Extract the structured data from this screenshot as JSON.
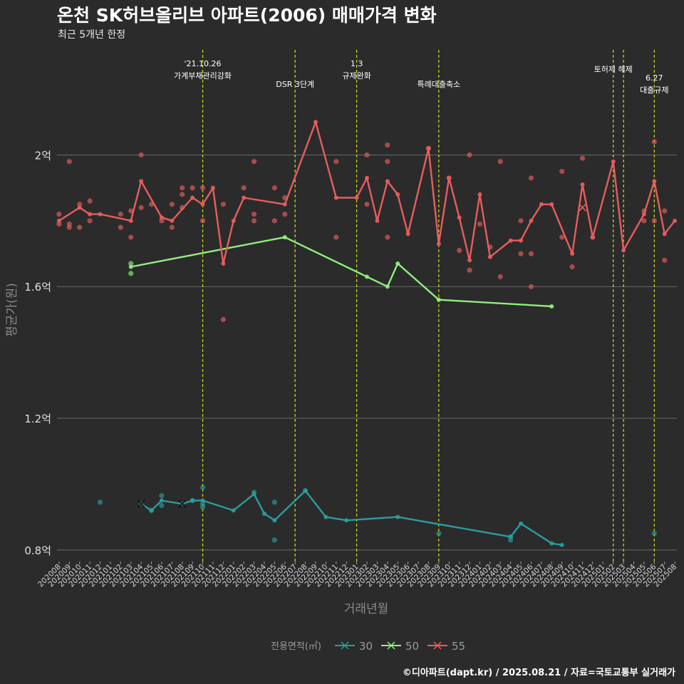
{
  "title": "온천 SK허브올리브 아파트(2006) 매매가격 변화",
  "subtitle": "최근 5개년 한정",
  "caption": "©디아파트(dapt.kr) / 2025.08.21 / 자료=국토교통부 실거래가",
  "chart_data": {
    "type": "line",
    "xlabel": "거래년월",
    "ylabel": "평균가(원)",
    "x": [
      "202008",
      "202009",
      "202010",
      "202011",
      "202012",
      "202101",
      "202102",
      "202103",
      "202104",
      "202105",
      "202106",
      "202107",
      "202108",
      "202109",
      "202110",
      "202111",
      "202112",
      "202201",
      "202202",
      "202203",
      "202204",
      "202205",
      "202206",
      "202207",
      "202208",
      "202209",
      "202210",
      "202211",
      "202212",
      "202301",
      "202302",
      "202303",
      "202304",
      "202305",
      "202306",
      "202307",
      "202308",
      "202309",
      "202310",
      "202311",
      "202312",
      "202401",
      "202402",
      "202403",
      "202404",
      "202405",
      "202406",
      "202407",
      "202408",
      "202409",
      "202410",
      "202411",
      "202412",
      "202501",
      "202502",
      "202503",
      "202504",
      "202505",
      "202506",
      "202507",
      "202508"
    ],
    "yticks": [
      {
        "v": 0.8,
        "label": "0.8억"
      },
      {
        "v": 1.2,
        "label": "1.2억"
      },
      {
        "v": 1.6,
        "label": "1.6억"
      },
      {
        "v": 2.0,
        "label": "2억"
      }
    ],
    "ylim": [
      0.765,
      2.33
    ],
    "legend_title": "전용면적(㎡)",
    "legend_position": "bottom",
    "grid": true,
    "series": [
      {
        "name": "30",
        "color": "#2a9d9d",
        "line": [
          [
            "202104",
            0.94
          ],
          [
            "202105",
            0.92
          ],
          [
            "202106",
            0.95
          ],
          [
            "202108",
            0.94
          ],
          [
            "202109",
            0.95
          ],
          [
            "202110",
            0.95
          ],
          [
            "202113",
            0.92
          ],
          [
            "202203",
            0.97
          ],
          [
            "202204",
            0.91
          ],
          [
            "202205",
            0.89
          ],
          [
            "202208",
            0.98
          ],
          [
            "202210",
            0.9
          ],
          [
            "202212",
            0.89
          ],
          [
            "202305",
            0.9
          ],
          [
            "202404",
            0.84
          ],
          [
            "202405",
            0.88
          ],
          [
            "202408",
            0.82
          ],
          [
            "202409",
            0.815
          ]
        ],
        "points": [
          [
            "202012",
            0.945
          ],
          [
            "202105",
            0.92
          ],
          [
            "202106",
            0.935
          ],
          [
            "202106",
            0.965
          ],
          [
            "202109",
            0.95
          ],
          [
            "202110",
            0.93
          ],
          [
            "202110",
            0.94
          ],
          [
            "202110",
            0.99
          ],
          [
            "202203",
            0.975
          ],
          [
            "202205",
            0.83
          ],
          [
            "202205",
            0.945
          ],
          [
            "202208",
            0.98
          ],
          [
            "202309",
            0.85
          ],
          [
            "202404",
            0.83
          ],
          [
            "202404",
            0.84
          ],
          [
            "202506",
            0.85
          ]
        ],
        "cross_points": [
          [
            "202104",
            0.94
          ],
          [
            "202108",
            0.94
          ]
        ]
      },
      {
        "name": "50",
        "color": "#90ee7e",
        "line": [
          [
            "202103",
            1.66
          ],
          [
            "202206",
            1.75
          ],
          [
            "202302",
            1.63
          ],
          [
            "202304",
            1.6
          ],
          [
            "202305",
            1.67
          ],
          [
            "202309",
            1.56
          ],
          [
            "202408",
            1.54
          ]
        ],
        "points": [
          [
            "202103",
            1.64
          ],
          [
            "202103",
            1.67
          ]
        ],
        "cross_points": []
      },
      {
        "name": "55",
        "color": "#e85d5d",
        "line": [
          [
            "202008",
            1.8
          ],
          [
            "202010",
            1.84
          ],
          [
            "202011",
            1.82
          ],
          [
            "202012",
            1.82
          ],
          [
            "202103",
            1.8
          ],
          [
            "202104",
            1.92
          ],
          [
            "202106",
            1.81
          ],
          [
            "202107",
            1.8
          ],
          [
            "202109",
            1.87
          ],
          [
            "202110",
            1.85
          ],
          [
            "202111",
            1.9
          ],
          [
            "202112",
            1.67
          ],
          [
            "202201",
            1.8
          ],
          [
            "202202",
            1.87
          ],
          [
            "202206",
            1.85
          ],
          [
            "202209",
            2.1
          ],
          [
            "202211",
            1.87
          ],
          [
            "202301",
            1.87
          ],
          [
            "202302",
            1.93
          ],
          [
            "202303",
            1.8
          ],
          [
            "202304",
            1.92
          ],
          [
            "202305",
            1.88
          ],
          [
            "202306",
            1.76
          ],
          [
            "202308",
            2.02
          ],
          [
            "202309",
            1.73
          ],
          [
            "202310",
            1.93
          ],
          [
            "202311",
            1.81
          ],
          [
            "202312",
            1.68
          ],
          [
            "202401",
            1.88
          ],
          [
            "202402",
            1.69
          ],
          [
            "202404",
            1.74
          ],
          [
            "202405",
            1.74
          ],
          [
            "202406",
            1.8
          ],
          [
            "202407",
            1.85
          ],
          [
            "202408",
            1.85
          ],
          [
            "202410",
            1.7
          ],
          [
            "202411",
            1.91
          ],
          [
            "202412",
            1.75
          ],
          [
            "202502",
            1.98
          ],
          [
            "202503",
            1.71
          ],
          [
            "202505",
            1.82
          ],
          [
            "202506",
            1.92
          ],
          [
            "202507",
            1.76
          ],
          [
            "202508",
            1.8
          ]
        ],
        "points": [
          [
            "202008",
            1.79
          ],
          [
            "202008",
            1.82
          ],
          [
            "202009",
            1.78
          ],
          [
            "202009",
            1.79
          ],
          [
            "202009",
            1.98
          ],
          [
            "202010",
            1.78
          ],
          [
            "202010",
            1.85
          ],
          [
            "202011",
            1.8
          ],
          [
            "202011",
            1.86
          ],
          [
            "202102",
            1.78
          ],
          [
            "202102",
            1.82
          ],
          [
            "202103",
            1.75
          ],
          [
            "202103",
            1.83
          ],
          [
            "202104",
            1.84
          ],
          [
            "202104",
            2.0
          ],
          [
            "202105",
            1.85
          ],
          [
            "202106",
            1.8
          ],
          [
            "202107",
            1.78
          ],
          [
            "202107",
            1.85
          ],
          [
            "202108",
            1.84
          ],
          [
            "202108",
            1.88
          ],
          [
            "202108",
            1.9
          ],
          [
            "202109",
            1.9
          ],
          [
            "202110",
            1.8
          ],
          [
            "202110",
            1.9
          ],
          [
            "202112",
            1.5
          ],
          [
            "202112",
            1.85
          ],
          [
            "202202",
            1.9
          ],
          [
            "202203",
            1.8
          ],
          [
            "202203",
            1.82
          ],
          [
            "202203",
            1.98
          ],
          [
            "202205",
            1.8
          ],
          [
            "202205",
            1.9
          ],
          [
            "202206",
            1.82
          ],
          [
            "202206",
            1.87
          ],
          [
            "202211",
            1.75
          ],
          [
            "202211",
            1.98
          ],
          [
            "202302",
            1.85
          ],
          [
            "202302",
            2.0
          ],
          [
            "202304",
            1.98
          ],
          [
            "202304",
            2.03
          ],
          [
            "202304",
            1.75
          ],
          [
            "202308",
            2.02
          ],
          [
            "202310",
            1.93
          ],
          [
            "202311",
            1.71
          ],
          [
            "202312",
            1.65
          ],
          [
            "202312",
            2.0
          ],
          [
            "202401",
            1.79
          ],
          [
            "202402",
            1.72
          ],
          [
            "202403",
            1.63
          ],
          [
            "202403",
            1.98
          ],
          [
            "202405",
            1.7
          ],
          [
            "202405",
            1.8
          ],
          [
            "202406",
            1.6
          ],
          [
            "202406",
            1.7
          ],
          [
            "202406",
            1.93
          ],
          [
            "202409",
            1.75
          ],
          [
            "202409",
            1.95
          ],
          [
            "202410",
            1.66
          ],
          [
            "202411",
            1.99
          ],
          [
            "202412",
            1.75
          ],
          [
            "202505",
            1.8
          ],
          [
            "202505",
            1.83
          ],
          [
            "202506",
            1.8
          ],
          [
            "202506",
            2.04
          ],
          [
            "202507",
            1.68
          ],
          [
            "202507",
            1.83
          ]
        ],
        "cross_points": [
          [
            "202411",
            1.84
          ]
        ]
      }
    ],
    "annotations": [
      {
        "x": "202110",
        "lines": [
          "'21.10.26",
          "가계부채관리강화"
        ],
        "row": 0
      },
      {
        "x": "202207",
        "lines": [
          "DSR 3단계"
        ],
        "row": 2
      },
      {
        "x": "202301",
        "lines": [
          "1.3",
          "규제완화"
        ],
        "row": 0
      },
      {
        "x": "202309",
        "lines": [
          "특례대출축소"
        ],
        "row": 2
      },
      {
        "x": "202502",
        "lines": [
          "토허제 해제"
        ],
        "row": 1
      },
      {
        "x": "202503",
        "lines": [],
        "row": 1
      },
      {
        "x": "202506",
        "lines": [
          "6.27",
          "대출규제"
        ],
        "row": 1.5
      }
    ]
  }
}
